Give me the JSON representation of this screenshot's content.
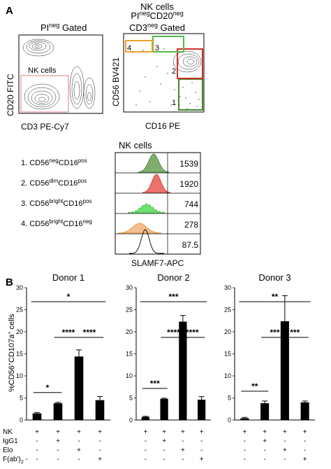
{
  "panel_a": {
    "letter": "A",
    "plot1": {
      "gate_title_main": "PI",
      "gate_title_sup": "neg",
      "gate_title_rest": " Gated",
      "gate_label": "NK cells",
      "ylabel": "CD20 FITC",
      "xlabel": "CD3 PE-Cy7",
      "gate_color": "#e07b7b"
    },
    "plot2": {
      "title_line1": "NK cells",
      "title_line2_a": "PI",
      "title_line2_a_sup": "neg",
      "title_line2_b": "CD20",
      "title_line2_b_sup": "neg",
      "title_line3_a": "CD3",
      "title_line3_a_sup": "neg",
      "title_line3_b": " Gated",
      "ylabel": "CD56 BV421",
      "xlabel": "CD16 PE",
      "gates": [
        {
          "label": "1",
          "color": "#3e8a2e"
        },
        {
          "label": "2",
          "color": "#d0302a"
        },
        {
          "label": "3",
          "color": "#56b848"
        },
        {
          "label": "4",
          "color": "#f0a030"
        }
      ]
    },
    "histogram": {
      "title": "NK cells",
      "xlabel": "SLAMF7-APC",
      "rows": [
        {
          "num": "1. ",
          "m1": "CD56",
          "s1": "neg",
          "m2": "CD16",
          "s2": "pos",
          "mfi": "1539",
          "color": "#3a7a2a",
          "fill": "#6aa055"
        },
        {
          "num": "2. ",
          "m1": "CD56",
          "s1": "dim",
          "m2": "CD16",
          "s2": "pos",
          "mfi": "1920",
          "color": "#d0302a",
          "fill": "#e85a55"
        },
        {
          "num": "3. ",
          "m1": "CD56",
          "s1": "bright",
          "m2": "CD16",
          "s2": "pos",
          "mfi": "744",
          "color": "#2fbf3a",
          "fill": "#55dd55"
        },
        {
          "num": "4. ",
          "m1": "CD56",
          "s1": "bright",
          "m2": "CD16",
          "s2": "neg",
          "mfi": "278",
          "color": "#e08a30",
          "fill": "#f3b37a"
        },
        {
          "num": "",
          "m1": "",
          "s1": "",
          "m2": "",
          "s2": "",
          "mfi": "87.5",
          "color": "#000000",
          "fill": "none"
        }
      ]
    }
  },
  "panel_b": {
    "letter": "B",
    "ylabel_main": "%CD56",
    "ylabel_sup1": "+",
    "ylabel_mid": "CD107a",
    "ylabel_sup2": "+",
    "ylabel_end": " cells",
    "row_labels": [
      "NK",
      "IgG1",
      "Elo",
      "F(ab')"
    ],
    "row_label_sub": "2",
    "conditions": [
      [
        "+",
        "+",
        "+",
        "+"
      ],
      [
        "-",
        "+",
        "-",
        "-"
      ],
      [
        "-",
        "-",
        "+",
        "-"
      ],
      [
        "-",
        "-",
        "-",
        "+"
      ]
    ]
  },
  "chart_data": [
    {
      "type": "bar",
      "title": "Donor 1",
      "categories": [
        "NK",
        "NK+IgG1",
        "NK+Elo",
        "NK+F(ab')2"
      ],
      "values": [
        1.5,
        3.8,
        14.4,
        4.5
      ],
      "errors": [
        0.2,
        0.2,
        1.5,
        0.8
      ],
      "ylim": [
        0,
        30
      ],
      "yticks": [
        0,
        5,
        10,
        15,
        20,
        25,
        30
      ],
      "significance": [
        {
          "from": 0,
          "to": 1,
          "label": "*"
        },
        {
          "from": 1,
          "to": 2,
          "label": "****"
        },
        {
          "from": 2,
          "to": 3,
          "label": "****"
        },
        {
          "from": 0,
          "to": 3,
          "label": "*"
        }
      ]
    },
    {
      "type": "bar",
      "title": "Donor 2",
      "categories": [
        "NK",
        "NK+IgG1",
        "NK+Elo",
        "NK+F(ab')2"
      ],
      "values": [
        0.7,
        4.8,
        22.3,
        4.6
      ],
      "errors": [
        0.15,
        0.15,
        1.4,
        0.7
      ],
      "ylim": [
        0,
        30
      ],
      "yticks": [
        0,
        5,
        10,
        15,
        20,
        25,
        30
      ],
      "significance": [
        {
          "from": 0,
          "to": 1,
          "label": "***"
        },
        {
          "from": 1,
          "to": 2,
          "label": "****"
        },
        {
          "from": 2,
          "to": 3,
          "label": "****"
        },
        {
          "from": 0,
          "to": 3,
          "label": "***"
        }
      ]
    },
    {
      "type": "bar",
      "title": "Donor 3",
      "categories": [
        "NK",
        "NK+IgG1",
        "NK+Elo",
        "NK+F(ab')2"
      ],
      "values": [
        0.4,
        3.8,
        22.4,
        4.0
      ],
      "errors": [
        0.2,
        0.5,
        5.8,
        0.3
      ],
      "ylim": [
        0,
        30
      ],
      "yticks": [
        0,
        5,
        10,
        15,
        20,
        25,
        30
      ],
      "significance": [
        {
          "from": 0,
          "to": 1,
          "label": "**"
        },
        {
          "from": 1,
          "to": 2,
          "label": "***"
        },
        {
          "from": 2,
          "to": 3,
          "label": "***"
        },
        {
          "from": 0,
          "to": 3,
          "label": "**"
        }
      ]
    }
  ]
}
